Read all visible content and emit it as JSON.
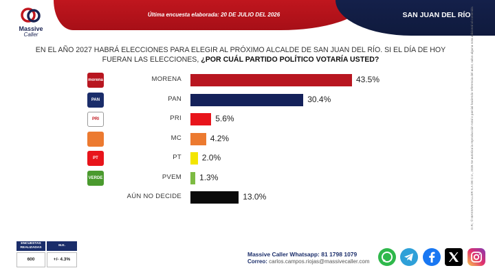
{
  "header": {
    "date_text": "Última encuesta elaborada: 20 DE JULIO DEL 2026",
    "city": "SAN JUAN DEL RÍO"
  },
  "logo": {
    "line1": "Massive",
    "line2": "Caller"
  },
  "question": {
    "part1": "EN EL AÑO 2027 HABRÁ ELECCIONES PARA ELEGIR AL PRÓXIMO ALCALDE DE SAN JUAN DEL RÍO. SI EL DÍA DE HOY FUERAN LAS ELECCIONES, ",
    "part2": "¿POR CUÁL PARTIDO POLÍTICO VOTARÍA USTED?"
  },
  "chart_data": {
    "type": "bar",
    "orientation": "horizontal",
    "categories": [
      "MORENA",
      "PAN",
      "PRI",
      "MC",
      "PT",
      "PVEM",
      "AÚN NO DECIDE"
    ],
    "values": [
      43.5,
      30.4,
      5.6,
      4.2,
      2.0,
      1.3,
      13.0
    ],
    "value_labels": [
      "43.5%",
      "30.4%",
      "5.6%",
      "4.2%",
      "2.0%",
      "1.3%",
      "13.0%"
    ],
    "colors": [
      "#b81620",
      "#14215a",
      "#e8141b",
      "#ec7a30",
      "#f3e500",
      "#7dbb42",
      "#0a0a0a"
    ],
    "party_icons": [
      "morena-logo",
      "pan-logo",
      "pri-logo",
      "mc-logo",
      "pt-logo",
      "pvem-logo",
      ""
    ],
    "logo_texts": [
      "morena",
      "PAN",
      "PRI",
      "",
      "PT",
      "VERDE",
      ""
    ],
    "grid": false,
    "legend": "none"
  },
  "side_text": "D.R.; © MASSIVE CALLER S.A DE C.V., 2026 Se autoriza la reproducción total o parcial haciendo referencia del autor, salvo alguna nota adicional al contenido.",
  "stats": {
    "h1": "ENCUESTAS REALIZADAS",
    "h2": "M.E.",
    "v1": "600",
    "v2": "+/- 4.3%"
  },
  "contact": {
    "whatsapp_label": "Massive Caller Whatsapp:",
    "whatsapp_number": "81 1798 1079",
    "email_label": "Correo:",
    "email": "carlos.campos.riojas@massivecaller.com"
  },
  "social_icons": [
    "whatsapp-icon",
    "telegram-icon",
    "facebook-icon",
    "x-icon",
    "instagram-icon"
  ]
}
